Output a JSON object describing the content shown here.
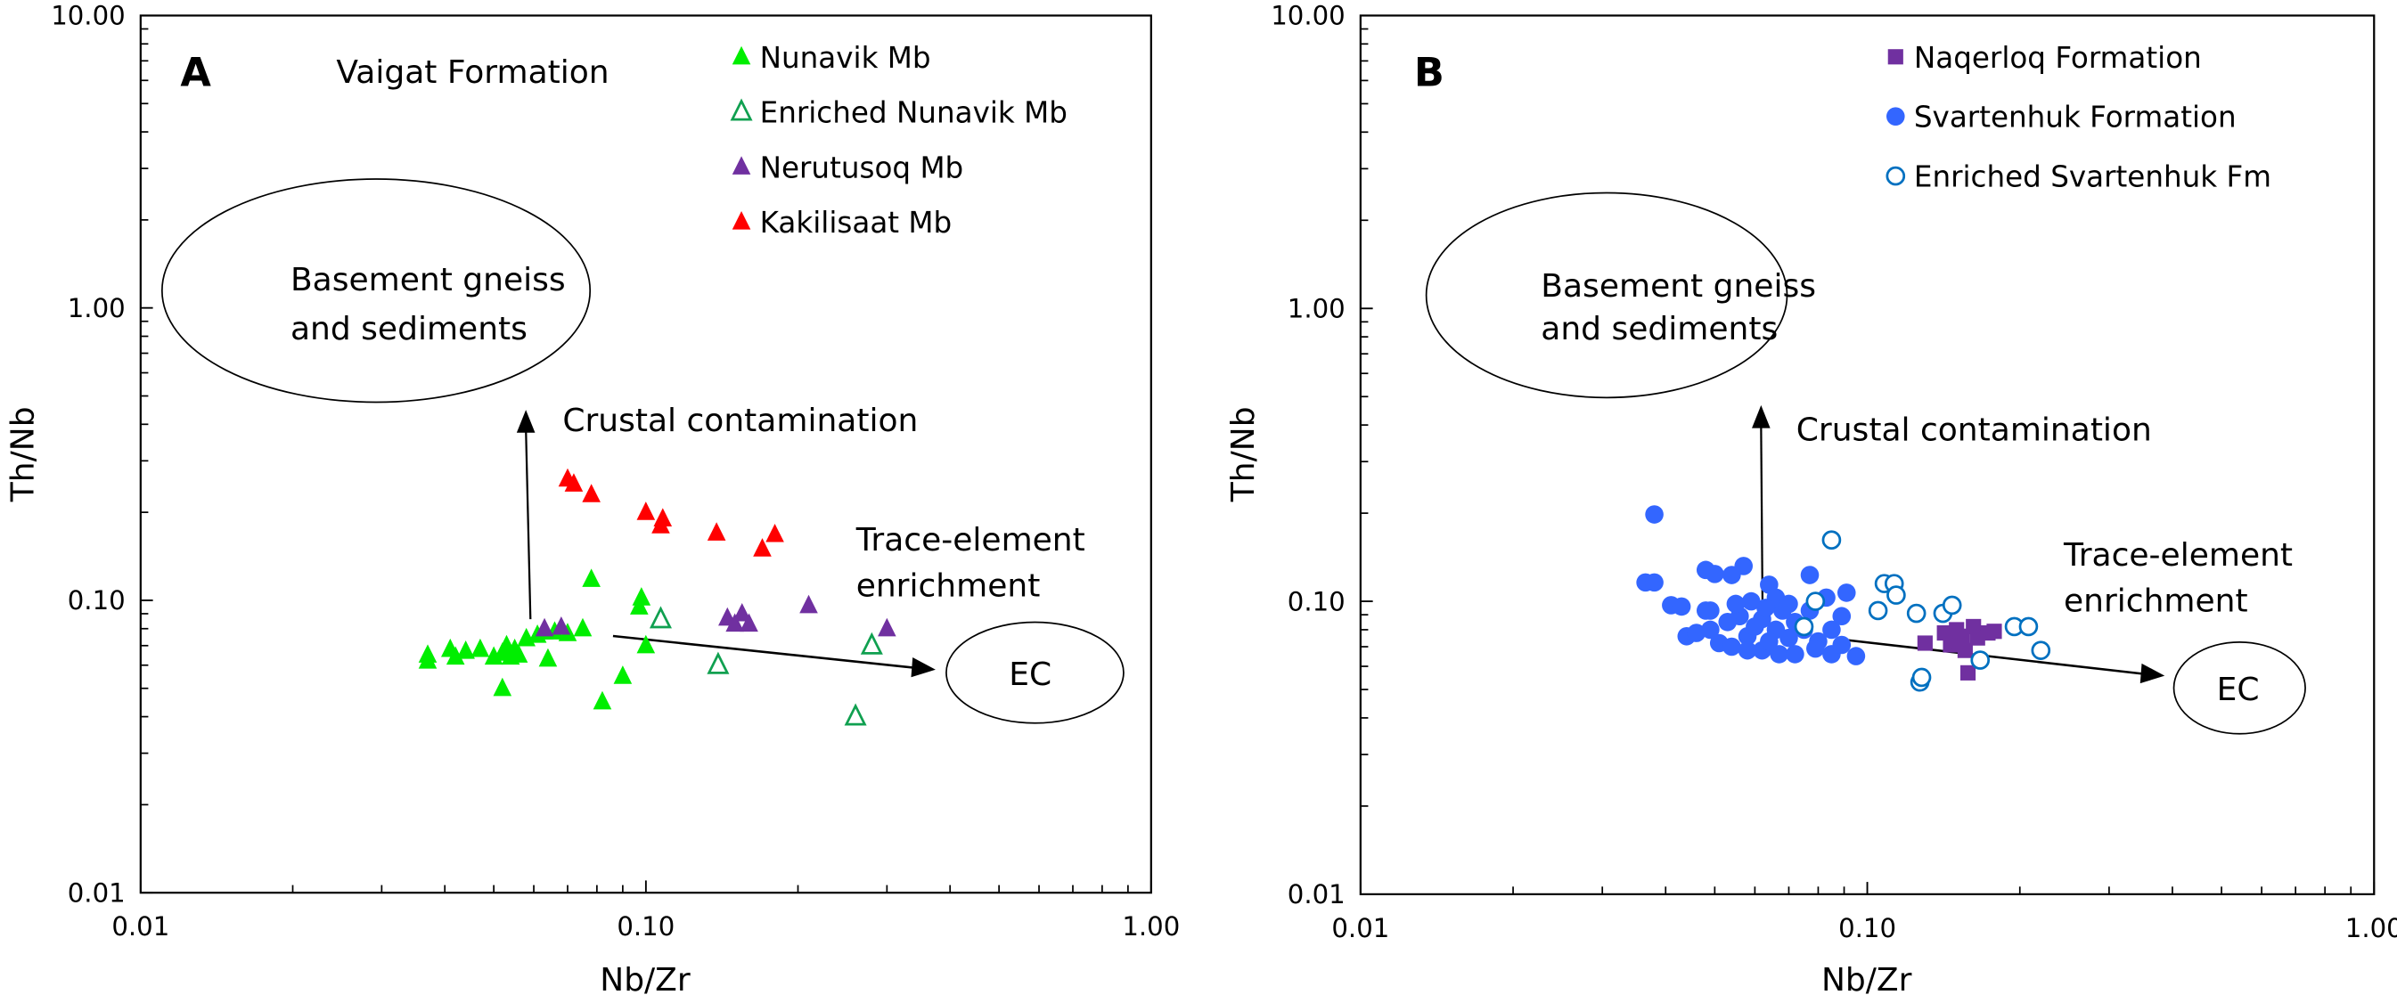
{
  "chart_data": [
    {
      "type": "scatter",
      "panel_label": "A",
      "title": "Vaigat Formation",
      "xlabel": "Nb/Zr",
      "ylabel": "Th/Nb",
      "xscale": "log",
      "yscale": "log",
      "xlim": [
        0.01,
        1
      ],
      "ylim": [
        0.01,
        10
      ],
      "xticks": [
        "0.01",
        "0.10",
        "1.00"
      ],
      "yticks": [
        "0.01",
        "0.10",
        "1.00",
        "10.00"
      ],
      "legend_position": "top-right",
      "annotations": {
        "basement_line1": "Basement gneiss",
        "basement_line2": "and sediments",
        "crustal": "Crustal contamination",
        "trace_line1": "Trace-element",
        "trace_line2": "enrichment",
        "ec": "EC"
      },
      "series": [
        {
          "name": "Nunavik Mb",
          "marker": "triangle",
          "filled": true,
          "color": "#00ee00",
          "points": [
            [
              0.037,
              0.065
            ],
            [
              0.037,
              0.062
            ],
            [
              0.041,
              0.068
            ],
            [
              0.042,
              0.064
            ],
            [
              0.044,
              0.067
            ],
            [
              0.047,
              0.068
            ],
            [
              0.05,
              0.064
            ],
            [
              0.052,
              0.066
            ],
            [
              0.053,
              0.07
            ],
            [
              0.055,
              0.068
            ],
            [
              0.058,
              0.074
            ],
            [
              0.061,
              0.076
            ],
            [
              0.063,
              0.078
            ],
            [
              0.066,
              0.078
            ],
            [
              0.07,
              0.077
            ],
            [
              0.075,
              0.08
            ],
            [
              0.078,
              0.118
            ],
            [
              0.082,
              0.045
            ],
            [
              0.09,
              0.055
            ],
            [
              0.097,
              0.095
            ],
            [
              0.098,
              0.102
            ],
            [
              0.1,
              0.07
            ],
            [
              0.052,
              0.05
            ],
            [
              0.064,
              0.063
            ],
            [
              0.056,
              0.065
            ],
            [
              0.054,
              0.064
            ]
          ]
        },
        {
          "name": "Enriched Nunavik Mb",
          "marker": "triangle",
          "filled": false,
          "color": "#10a050",
          "points": [
            [
              0.107,
              0.086
            ],
            [
              0.139,
              0.06
            ],
            [
              0.28,
              0.07
            ],
            [
              0.26,
              0.04
            ]
          ]
        },
        {
          "name": "Nerutusoq Mb",
          "marker": "triangle",
          "filled": true,
          "color": "#7030a0",
          "points": [
            [
              0.063,
              0.08
            ],
            [
              0.068,
              0.081
            ],
            [
              0.145,
              0.087
            ],
            [
              0.15,
              0.083
            ],
            [
              0.155,
              0.09
            ],
            [
              0.16,
              0.083
            ],
            [
              0.21,
              0.096
            ],
            [
              0.3,
              0.08
            ]
          ]
        },
        {
          "name": "Kakilisaat Mb",
          "marker": "triangle",
          "filled": true,
          "color": "#ff0000",
          "points": [
            [
              0.07,
              0.26
            ],
            [
              0.072,
              0.25
            ],
            [
              0.078,
              0.23
            ],
            [
              0.1,
              0.2
            ],
            [
              0.107,
              0.18
            ],
            [
              0.108,
              0.19
            ],
            [
              0.138,
              0.17
            ],
            [
              0.17,
              0.15
            ],
            [
              0.18,
              0.168
            ]
          ]
        }
      ]
    },
    {
      "type": "scatter",
      "panel_label": "B",
      "xlabel": "Nb/Zr",
      "ylabel": "Th/Nb",
      "xscale": "log",
      "yscale": "log",
      "xlim": [
        0.01,
        1
      ],
      "ylim": [
        0.01,
        10
      ],
      "xticks": [
        "0.01",
        "0.10",
        "1.00"
      ],
      "yticks": [
        "0.01",
        "0.10",
        "1.00",
        "10.00"
      ],
      "legend_position": "top-right",
      "annotations": {
        "basement_line1": "Basement gneiss",
        "basement_line2": "and sediments",
        "crustal": "Crustal contamination",
        "trace_line1": "Trace-element",
        "trace_line2": "enrichment",
        "ec": "EC"
      },
      "series": [
        {
          "name": "Naqerloq Formation",
          "marker": "square",
          "filled": true,
          "color": "#7030a0",
          "points": [
            [
              0.13,
              0.072
            ],
            [
              0.142,
              0.078
            ],
            [
              0.15,
              0.08
            ],
            [
              0.154,
              0.076
            ],
            [
              0.162,
              0.082
            ],
            [
              0.165,
              0.075
            ],
            [
              0.173,
              0.078
            ],
            [
              0.178,
              0.079
            ],
            [
              0.146,
              0.071
            ],
            [
              0.156,
              0.068
            ],
            [
              0.158,
              0.057
            ],
            [
              0.152,
              0.073
            ]
          ]
        },
        {
          "name": "Svartenhuk Formation",
          "marker": "circle",
          "filled": true,
          "color": "#3366ff",
          "points": [
            [
              0.038,
              0.198
            ],
            [
              0.0365,
              0.116
            ],
            [
              0.038,
              0.116
            ],
            [
              0.048,
              0.128
            ],
            [
              0.05,
              0.124
            ],
            [
              0.057,
              0.132
            ],
            [
              0.054,
              0.123
            ],
            [
              0.064,
              0.114
            ],
            [
              0.077,
              0.123
            ],
            [
              0.091,
              0.107
            ],
            [
              0.041,
              0.097
            ],
            [
              0.043,
              0.096
            ],
            [
              0.049,
              0.093
            ],
            [
              0.044,
              0.076
            ],
            [
              0.046,
              0.078
            ],
            [
              0.051,
              0.072
            ],
            [
              0.054,
              0.07
            ],
            [
              0.058,
              0.076
            ],
            [
              0.062,
              0.068
            ],
            [
              0.067,
              0.066
            ],
            [
              0.072,
              0.066
            ],
            [
              0.08,
              0.073
            ],
            [
              0.085,
              0.066
            ],
            [
              0.095,
              0.065
            ],
            [
              0.089,
              0.071
            ],
            [
              0.089,
              0.089
            ],
            [
              0.083,
              0.103
            ],
            [
              0.068,
              0.093
            ],
            [
              0.062,
              0.087
            ],
            [
              0.056,
              0.089
            ],
            [
              0.066,
              0.08
            ],
            [
              0.072,
              0.085
            ],
            [
              0.077,
              0.093
            ],
            [
              0.053,
              0.085
            ],
            [
              0.049,
              0.08
            ],
            [
              0.059,
              0.1
            ],
            [
              0.066,
              0.103
            ],
            [
              0.07,
              0.098
            ],
            [
              0.075,
              0.08
            ],
            [
              0.079,
              0.069
            ],
            [
              0.064,
              0.073
            ],
            [
              0.048,
              0.093
            ],
            [
              0.055,
              0.098
            ],
            [
              0.06,
              0.082
            ],
            [
              0.07,
              0.075
            ],
            [
              0.085,
              0.08
            ],
            [
              0.063,
              0.095
            ],
            [
              0.058,
              0.068
            ]
          ]
        },
        {
          "name": "Enriched Svartenhuk Fm",
          "marker": "circle",
          "filled": false,
          "color": "#0070c0",
          "points": [
            [
              0.085,
              0.162
            ],
            [
              0.079,
              0.1
            ],
            [
              0.075,
              0.082
            ],
            [
              0.108,
              0.115
            ],
            [
              0.113,
              0.115
            ],
            [
              0.114,
              0.105
            ],
            [
              0.105,
              0.093
            ],
            [
              0.125,
              0.091
            ],
            [
              0.141,
              0.091
            ],
            [
              0.147,
              0.097
            ],
            [
              0.195,
              0.082
            ],
            [
              0.208,
              0.082
            ],
            [
              0.22,
              0.068
            ],
            [
              0.167,
              0.063
            ],
            [
              0.127,
              0.053
            ],
            [
              0.128,
              0.055
            ]
          ]
        }
      ]
    }
  ]
}
